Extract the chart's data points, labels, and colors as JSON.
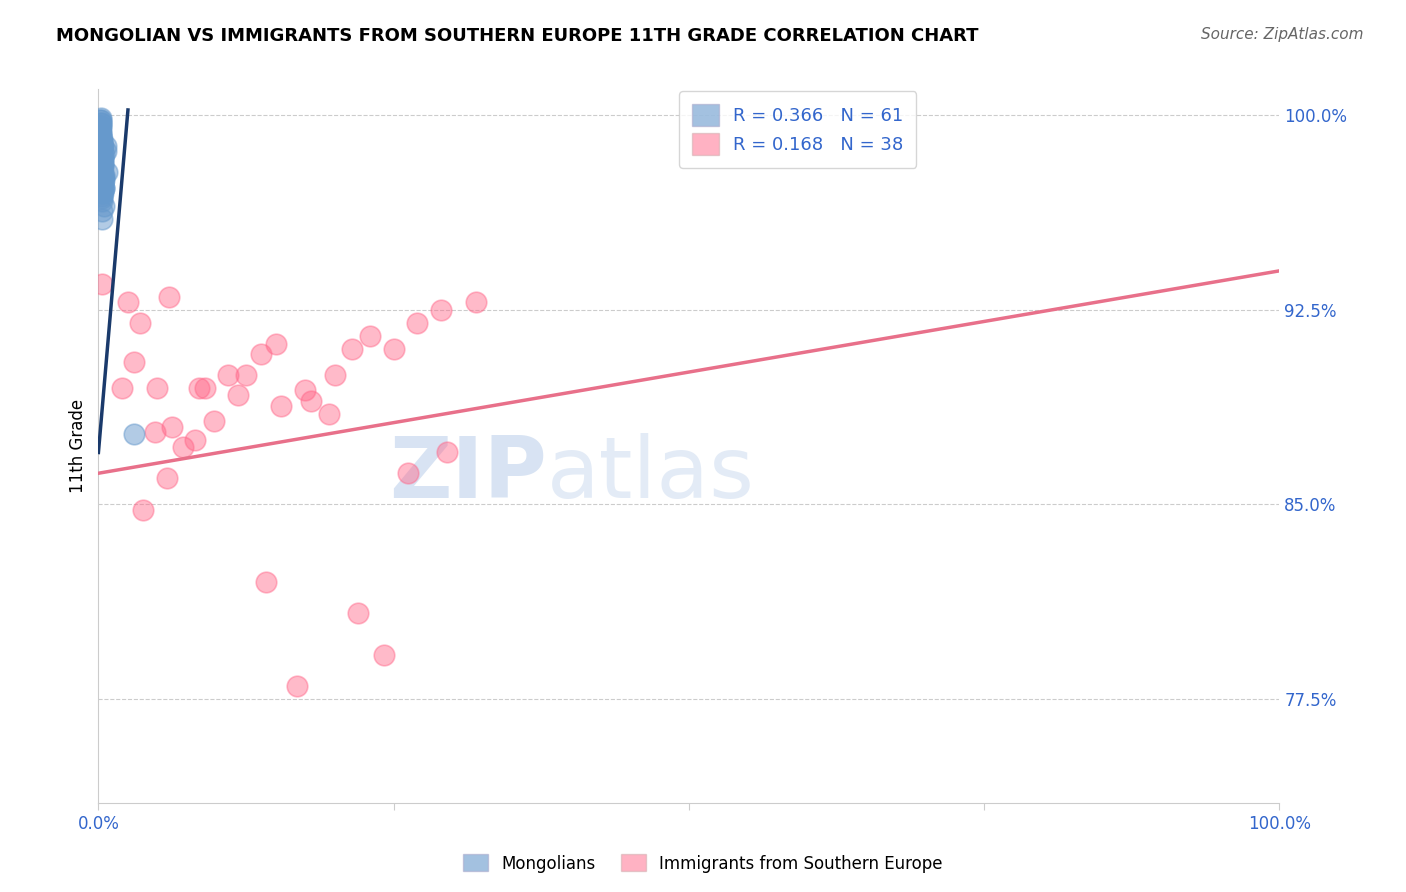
{
  "title": "MONGOLIAN VS IMMIGRANTS FROM SOUTHERN EUROPE 11TH GRADE CORRELATION CHART",
  "source": "Source: ZipAtlas.com",
  "ylabel": "11th Grade",
  "blue_label": "Mongolians",
  "pink_label": "Immigrants from Southern Europe",
  "blue_R": 0.366,
  "blue_N": 61,
  "pink_R": 0.168,
  "pink_N": 38,
  "xlim": [
    0.0,
    1.0
  ],
  "ylim": [
    0.735,
    1.01
  ],
  "yticks": [
    0.775,
    0.85,
    0.925,
    1.0
  ],
  "ytick_labels": [
    "77.5%",
    "85.0%",
    "92.5%",
    "100.0%"
  ],
  "xticks": [
    0.0,
    0.25,
    0.5,
    0.75,
    1.0
  ],
  "xtick_labels": [
    "0.0%",
    "",
    "",
    "",
    "100.0%"
  ],
  "blue_color": "#6699CC",
  "pink_color": "#FF6688",
  "blue_line_color": "#1A3A6B",
  "pink_line_color": "#E8708A",
  "blue_scatter_x": [
    0.002,
    0.004,
    0.005,
    0.003,
    0.006,
    0.004,
    0.005,
    0.007,
    0.002,
    0.003,
    0.001,
    0.003,
    0.004,
    0.005,
    0.002,
    0.003,
    0.003,
    0.004,
    0.005,
    0.002,
    0.001,
    0.003,
    0.004,
    0.006,
    0.003,
    0.002,
    0.002,
    0.004,
    0.005,
    0.004,
    0.003,
    0.003,
    0.002,
    0.002,
    0.003,
    0.001,
    0.004,
    0.005,
    0.003,
    0.004,
    0.002,
    0.003,
    0.002,
    0.005,
    0.003,
    0.002,
    0.004,
    0.003,
    0.004,
    0.001,
    0.002,
    0.003,
    0.003,
    0.002,
    0.004,
    0.001,
    0.003,
    0.002,
    0.003,
    0.002,
    0.03
  ],
  "blue_scatter_y": [
    0.98,
    0.975,
    0.985,
    0.99,
    0.988,
    0.97,
    0.965,
    0.978,
    0.992,
    0.968,
    0.995,
    0.985,
    0.976,
    0.972,
    0.998,
    0.982,
    0.96,
    0.988,
    0.975,
    0.99,
    0.994,
    0.979,
    0.983,
    0.986,
    0.969,
    0.997,
    0.984,
    0.974,
    0.977,
    0.981,
    0.991,
    0.963,
    0.987,
    0.999,
    0.973,
    0.996,
    0.971,
    0.976,
    0.989,
    0.98,
    0.993,
    0.985,
    0.996,
    0.972,
    0.978,
    0.991,
    0.983,
    0.988,
    0.974,
    0.994,
    0.997,
    0.97,
    0.986,
    0.993,
    0.981,
    0.998,
    0.967,
    0.995,
    0.988,
    0.99,
    0.877
  ],
  "pink_scatter_x": [
    0.003,
    0.29,
    0.02,
    0.035,
    0.05,
    0.06,
    0.085,
    0.11,
    0.15,
    0.025,
    0.03,
    0.18,
    0.2,
    0.23,
    0.048,
    0.062,
    0.09,
    0.25,
    0.27,
    0.125,
    0.138,
    0.155,
    0.175,
    0.215,
    0.072,
    0.082,
    0.195,
    0.098,
    0.118,
    0.32,
    0.038,
    0.058,
    0.22,
    0.242,
    0.262,
    0.295,
    0.142,
    0.168
  ],
  "pink_scatter_y": [
    0.935,
    0.925,
    0.895,
    0.92,
    0.895,
    0.93,
    0.895,
    0.9,
    0.912,
    0.928,
    0.905,
    0.89,
    0.9,
    0.915,
    0.878,
    0.88,
    0.895,
    0.91,
    0.92,
    0.9,
    0.908,
    0.888,
    0.894,
    0.91,
    0.872,
    0.875,
    0.885,
    0.882,
    0.892,
    0.928,
    0.848,
    0.86,
    0.808,
    0.792,
    0.862,
    0.87,
    0.82,
    0.78
  ],
  "blue_line_x": [
    0.0,
    0.025
  ],
  "blue_line_y": [
    0.87,
    1.002
  ],
  "pink_line_x": [
    0.0,
    1.0
  ],
  "pink_line_y": [
    0.862,
    0.94
  ]
}
